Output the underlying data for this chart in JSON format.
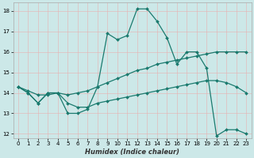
{
  "xlabel": "Humidex (Indice chaleur)",
  "xlim": [
    -0.5,
    23.5
  ],
  "ylim": [
    11.8,
    18.4
  ],
  "yticks": [
    12,
    13,
    14,
    15,
    16,
    17,
    18
  ],
  "xticks": [
    0,
    1,
    2,
    3,
    4,
    5,
    6,
    7,
    8,
    9,
    10,
    11,
    12,
    13,
    14,
    15,
    16,
    17,
    18,
    19,
    20,
    21,
    22,
    23
  ],
  "bg_color": "#cce8e8",
  "line_color": "#1a7a6e",
  "line1_x": [
    0,
    1,
    2,
    3,
    4,
    5,
    6,
    7,
    8,
    9,
    10,
    11,
    12,
    13,
    14,
    15,
    16,
    17,
    18,
    19,
    20,
    21,
    22,
    23
  ],
  "line1_y": [
    14.3,
    14.0,
    13.5,
    14.0,
    14.0,
    13.0,
    13.0,
    13.2,
    14.3,
    16.9,
    16.6,
    16.8,
    18.1,
    18.1,
    17.5,
    16.7,
    15.4,
    16.0,
    16.0,
    15.2,
    11.9,
    12.2,
    12.2,
    12.0
  ],
  "line2_x": [
    0,
    1,
    2,
    3,
    4,
    5,
    6,
    7,
    8,
    9,
    10,
    11,
    12,
    13,
    14,
    15,
    16,
    17,
    18,
    19,
    20,
    21,
    22,
    23
  ],
  "line2_y": [
    14.3,
    14.1,
    13.9,
    13.9,
    14.0,
    13.9,
    14.0,
    14.1,
    14.3,
    14.5,
    14.7,
    14.9,
    15.1,
    15.2,
    15.4,
    15.5,
    15.6,
    15.7,
    15.8,
    15.9,
    16.0,
    16.0,
    16.0,
    16.0
  ],
  "line3_x": [
    0,
    1,
    2,
    3,
    4,
    5,
    6,
    7,
    8,
    9,
    10,
    11,
    12,
    13,
    14,
    15,
    16,
    17,
    18,
    19,
    20,
    21,
    22,
    23
  ],
  "line3_y": [
    14.3,
    14.0,
    13.5,
    14.0,
    14.0,
    13.5,
    13.3,
    13.3,
    13.5,
    13.6,
    13.7,
    13.8,
    13.9,
    14.0,
    14.1,
    14.2,
    14.3,
    14.4,
    14.5,
    14.6,
    14.6,
    14.5,
    14.3,
    14.0
  ]
}
